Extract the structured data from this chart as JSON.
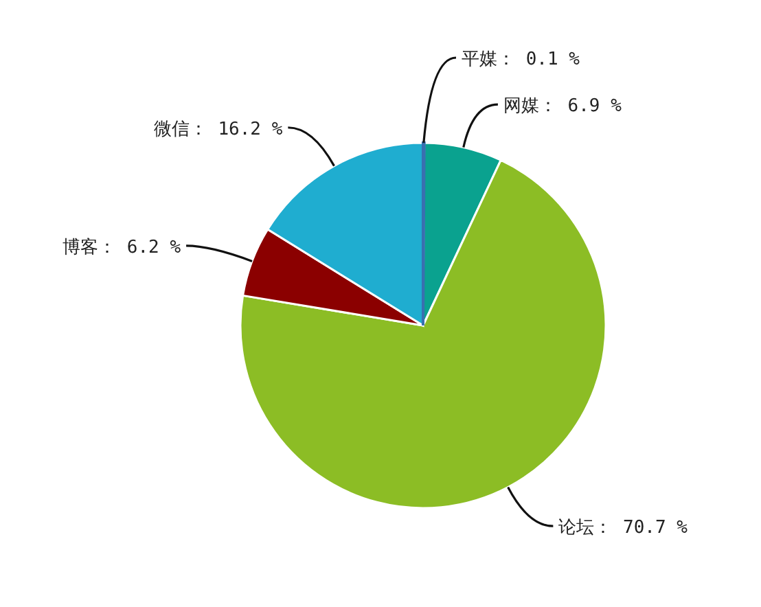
{
  "chart_data": {
    "type": "pie",
    "categories": [
      "平媒",
      "网媒",
      "论坛",
      "博客",
      "微信"
    ],
    "values": [
      0.1,
      6.9,
      70.7,
      6.2,
      16.2
    ],
    "value_labels": [
      "0.1 %",
      "6.9 %",
      "70.7 %",
      "6.2 %",
      "16.2 %"
    ],
    "colors": [
      "#3a6fb0",
      "#0aa28f",
      "#8cbd25",
      "#8b0000",
      "#1fadd0"
    ],
    "legend": false
  }
}
